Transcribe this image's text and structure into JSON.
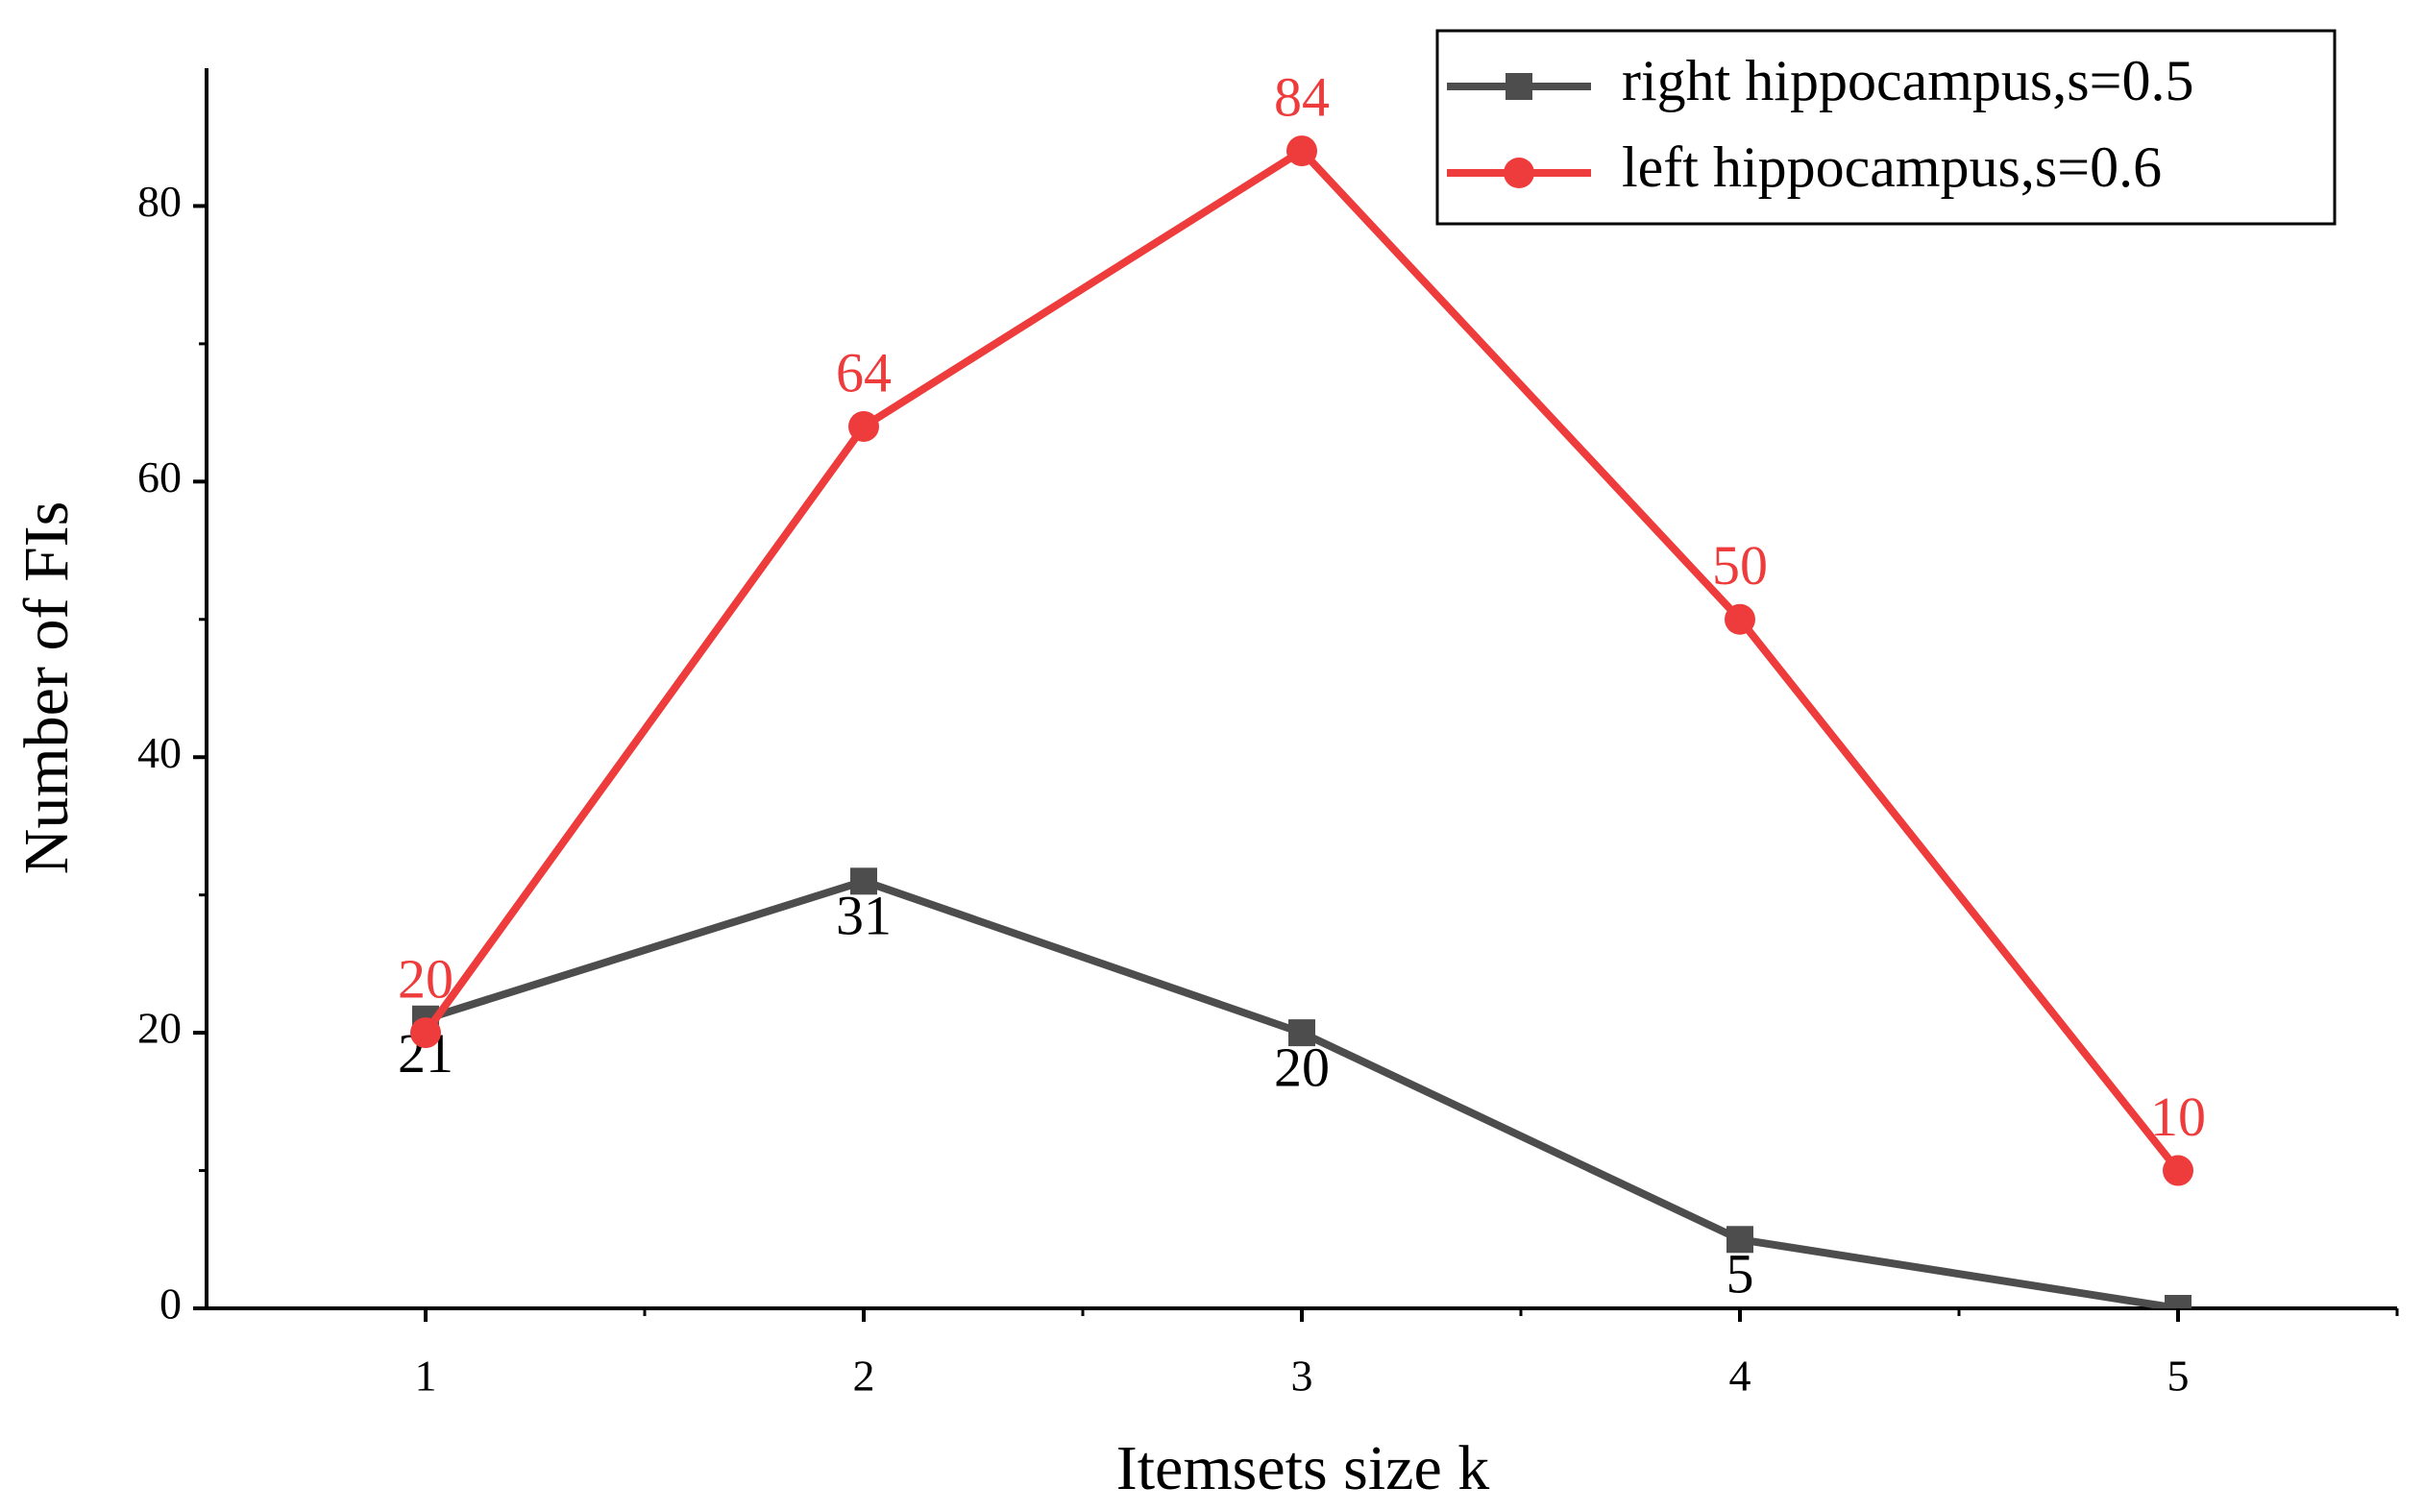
{
  "chart_data": {
    "type": "line",
    "x_label": "Itemsets size k",
    "y_label": "Number of FIs",
    "x": [
      1,
      2,
      3,
      4,
      5
    ],
    "series": [
      {
        "name": "right hippocampus,s=0.5",
        "color": "#4d4d4d",
        "marker": "square",
        "values": [
          21,
          31,
          20,
          5,
          0
        ]
      },
      {
        "name": "left hippocampus,s=0.6",
        "color": "#ee3b3b",
        "marker": "circle",
        "values": [
          20,
          64,
          84,
          50,
          10
        ]
      }
    ],
    "xlim": [
      0.5,
      5.5
    ],
    "xticks": [
      1,
      2,
      3,
      4,
      5
    ],
    "ylim": [
      0,
      90
    ],
    "yticks": [
      0,
      20,
      40,
      60,
      80
    ],
    "legend": "upper right",
    "grid": false
  }
}
